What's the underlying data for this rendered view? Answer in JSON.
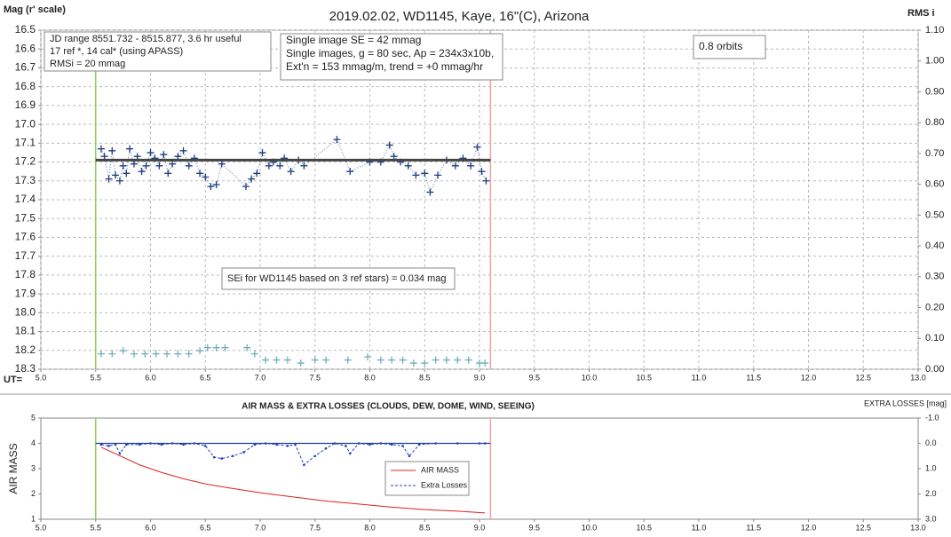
{
  "chart_data": [
    {
      "type": "scatter",
      "title": "2019.02.02, WD1145, Kaye, 16\"(C), Arizona",
      "ylabel": "Mag (r' scale)",
      "y2label": "RMS i",
      "xlabel": "UT=",
      "xlim": [
        5,
        13
      ],
      "xticks": [
        {
          "value": 5,
          "label": "5.0"
        },
        5.5,
        {
          "value": 6,
          "label": "6.0"
        },
        6.5,
        {
          "value": 7,
          "label": "7.0"
        },
        7.5,
        {
          "value": 8,
          "label": "8.0"
        },
        8.5,
        {
          "value": 9,
          "label": "9.0"
        },
        9.5,
        {
          "value": 10,
          "label": "10.0"
        },
        10.5,
        {
          "value": 11,
          "label": "11.0"
        },
        11.5,
        {
          "value": 12,
          "label": "12.0"
        },
        12.5,
        {
          "value": 13,
          "label": "13.0"
        }
      ],
      "ylim": [
        16.5,
        18.3
      ],
      "y_inverted": true,
      "yticks": [
        16.5,
        16.6,
        16.7,
        16.8,
        16.9,
        {
          "value": 17,
          "label": "17.0"
        },
        17.1,
        17.2,
        17.3,
        17.4,
        17.5,
        17.6,
        17.7,
        17.8,
        17.9,
        {
          "value": 18,
          "label": "18.0"
        },
        18.1,
        18.2,
        18.3
      ],
      "y2lim": [
        0,
        1.1
      ],
      "y2ticks": [
        {
          "value": 0,
          "label": "0.00"
        },
        {
          "value": 0.1,
          "label": "0.10"
        },
        {
          "value": 0.2,
          "label": "0.20"
        },
        {
          "value": 0.3,
          "label": "0.30"
        },
        {
          "value": 0.4,
          "label": "0.40"
        },
        {
          "value": 0.5,
          "label": "0.50"
        },
        {
          "value": 0.6,
          "label": "0.60"
        },
        {
          "value": 0.7,
          "label": "0.70"
        },
        {
          "value": 0.8,
          "label": "0.80"
        },
        {
          "value": 0.9,
          "label": "0.90"
        },
        {
          "value": 1,
          "label": "1.00"
        },
        {
          "value": 1.1,
          "label": "1.10"
        }
      ],
      "grid": true,
      "series": [
        {
          "color": "#1f3f7f",
          "marker": "+",
          "line": "dotted",
          "x": [
            5.55,
            5.58,
            5.62,
            5.65,
            5.68,
            5.72,
            5.75,
            5.78,
            5.81,
            5.85,
            5.88,
            5.92,
            5.96,
            6.0,
            6.04,
            6.08,
            6.12,
            6.16,
            6.2,
            6.25,
            6.3,
            6.35,
            6.4,
            6.45,
            6.5,
            6.55,
            6.6,
            6.65,
            6.87,
            6.92,
            6.97,
            7.02,
            7.08,
            7.12,
            7.18,
            7.22,
            7.28,
            7.35,
            7.4,
            7.7,
            7.82,
            8.0,
            8.1,
            8.18,
            8.22,
            8.28,
            8.35,
            8.42,
            8.5,
            8.55,
            8.62,
            8.7,
            8.78,
            8.85,
            8.92,
            8.98,
            9.02,
            9.06
          ],
          "values": [
            17.13,
            17.17,
            17.29,
            17.14,
            17.27,
            17.3,
            17.22,
            17.26,
            17.13,
            17.21,
            17.17,
            17.25,
            17.22,
            17.15,
            17.18,
            17.22,
            17.16,
            17.26,
            17.21,
            17.17,
            17.14,
            17.22,
            17.18,
            17.26,
            17.28,
            17.33,
            17.32,
            17.21,
            17.33,
            17.29,
            17.26,
            17.15,
            17.22,
            17.2,
            17.22,
            17.18,
            17.25,
            17.19,
            17.22,
            17.08,
            17.25,
            17.2,
            17.2,
            17.11,
            17.17,
            17.2,
            17.22,
            17.27,
            17.26,
            17.36,
            17.27,
            17.19,
            17.22,
            17.18,
            17.22,
            17.12,
            17.25,
            17.3
          ]
        },
        {
          "color": "#444444",
          "line": "solid",
          "width": 3,
          "x": [
            5.5,
            9.1
          ],
          "values": [
            17.19,
            17.19
          ]
        },
        {
          "color": "#6fb0b8",
          "marker": "+",
          "axis": "y2",
          "x": [
            5.55,
            5.65,
            5.75,
            5.85,
            5.95,
            6.05,
            6.15,
            6.25,
            6.35,
            6.45,
            6.52,
            6.6,
            6.68,
            6.88,
            6.95,
            7.05,
            7.15,
            7.25,
            7.37,
            7.5,
            7.6,
            7.8,
            7.98,
            8.1,
            8.2,
            8.3,
            8.4,
            8.5,
            8.6,
            8.7,
            8.8,
            8.9,
            9.0,
            9.05
          ],
          "values": [
            0.05,
            0.05,
            0.06,
            0.05,
            0.05,
            0.05,
            0.05,
            0.05,
            0.05,
            0.06,
            0.07,
            0.07,
            0.07,
            0.07,
            0.05,
            0.03,
            0.03,
            0.03,
            0.02,
            0.03,
            0.03,
            0.03,
            0.04,
            0.03,
            0.03,
            0.03,
            0.02,
            0.02,
            0.03,
            0.03,
            0.03,
            0.03,
            0.02,
            0.02
          ]
        }
      ],
      "vlines": [
        {
          "x": 5.5,
          "color": "#92d050"
        },
        {
          "x": 9.1,
          "color": "#f4a0a0"
        }
      ],
      "annotations": [
        {
          "lines": [
            "JD range 8551.732 - 8515.877, 3.6 hr useful",
            "17 ref *, 14 cal* (using APASS)",
            "RMSi = 20 mmag"
          ]
        },
        {
          "lines": [
            "Single image SE = 42 mmag",
            "Single images, g = 80 sec, Ap = 234x3x10b,",
            "Ext'n = 153 mmag/m, trend = +0 mmag/hr"
          ]
        },
        {
          "lines": [
            "0.8 orbits"
          ]
        },
        {
          "lines": [
            "SEi for WD1145 based on 3 ref stars) = 0.034 mag"
          ]
        }
      ]
    },
    {
      "type": "line",
      "title": "AIR MASS & EXTRA LOSSES (CLOUDS, DEW, DOME, WIND, SEEING)",
      "ylabel": "AIR MASS",
      "y2label": "EXTRA LOSSES [mag]",
      "xlim": [
        5,
        13
      ],
      "xticks": [
        {
          "value": 5,
          "label": "5.0"
        },
        5.5,
        {
          "value": 6,
          "label": "6.0"
        },
        6.5,
        {
          "value": 7,
          "label": "7.0"
        },
        7.5,
        {
          "value": 8,
          "label": "8.0"
        },
        8.5,
        {
          "value": 9,
          "label": "9.0"
        },
        9.5,
        {
          "value": 10,
          "label": "10.0"
        },
        10.5,
        {
          "value": 11,
          "label": "11.0"
        },
        11.5,
        {
          "value": 12,
          "label": "12.0"
        },
        12.5,
        {
          "value": 13,
          "label": "13.0"
        }
      ],
      "ylim": [
        1,
        5
      ],
      "yticks": [
        1,
        2,
        3,
        4,
        5
      ],
      "y2lim": [
        -1,
        3
      ],
      "y2_inverted": true,
      "y2ticks": [
        {
          "value": -1,
          "label": "-1.0"
        },
        {
          "value": 0,
          "label": "0.0"
        },
        {
          "value": 1,
          "label": "1.0"
        },
        {
          "value": 2,
          "label": "2.0"
        },
        {
          "value": 3,
          "label": "3.0"
        }
      ],
      "grid": false,
      "legend": true,
      "series": [
        {
          "name": "AIR MASS",
          "color": "#e02020",
          "line": "solid",
          "x": [
            5.55,
            5.7,
            5.9,
            6.1,
            6.3,
            6.5,
            6.7,
            7.0,
            7.3,
            7.6,
            7.9,
            8.2,
            8.5,
            8.8,
            9.05
          ],
          "values": [
            3.85,
            3.55,
            3.15,
            2.85,
            2.6,
            2.4,
            2.25,
            2.05,
            1.88,
            1.72,
            1.6,
            1.48,
            1.38,
            1.32,
            1.25
          ]
        },
        {
          "name": "Extra Losses",
          "color": "#1f3fbf",
          "line": "dashed",
          "marker": "dot",
          "axis": "y2",
          "x": [
            5.55,
            5.62,
            5.68,
            5.72,
            5.78,
            5.9,
            6.0,
            6.1,
            6.2,
            6.3,
            6.4,
            6.5,
            6.58,
            6.65,
            6.75,
            6.85,
            6.95,
            7.05,
            7.15,
            7.25,
            7.32,
            7.4,
            7.5,
            7.6,
            7.68,
            7.78,
            7.82,
            7.9,
            8.0,
            8.1,
            8.2,
            8.3,
            8.36,
            8.45,
            8.6,
            8.8,
            9.0,
            9.05
          ],
          "values": [
            0.05,
            0.1,
            0.05,
            0.4,
            0.05,
            0.05,
            0,
            0.05,
            0,
            0.05,
            0,
            0.1,
            0.55,
            0.6,
            0.5,
            0.35,
            0.05,
            0,
            0.05,
            0.1,
            0.05,
            0.85,
            0.5,
            0.2,
            0,
            0.1,
            0.4,
            0,
            0.05,
            0,
            0.05,
            0.1,
            0.5,
            0.05,
            0,
            0,
            0,
            0
          ]
        }
      ],
      "vlines": [
        {
          "x": 5.5,
          "color": "#92d050"
        },
        {
          "x": 9.1,
          "color": "#f4a0a0"
        }
      ],
      "hlines": [
        {
          "y": 4,
          "x": [
            5.5,
            9.1
          ],
          "color": "#1f3f8f"
        }
      ]
    }
  ]
}
